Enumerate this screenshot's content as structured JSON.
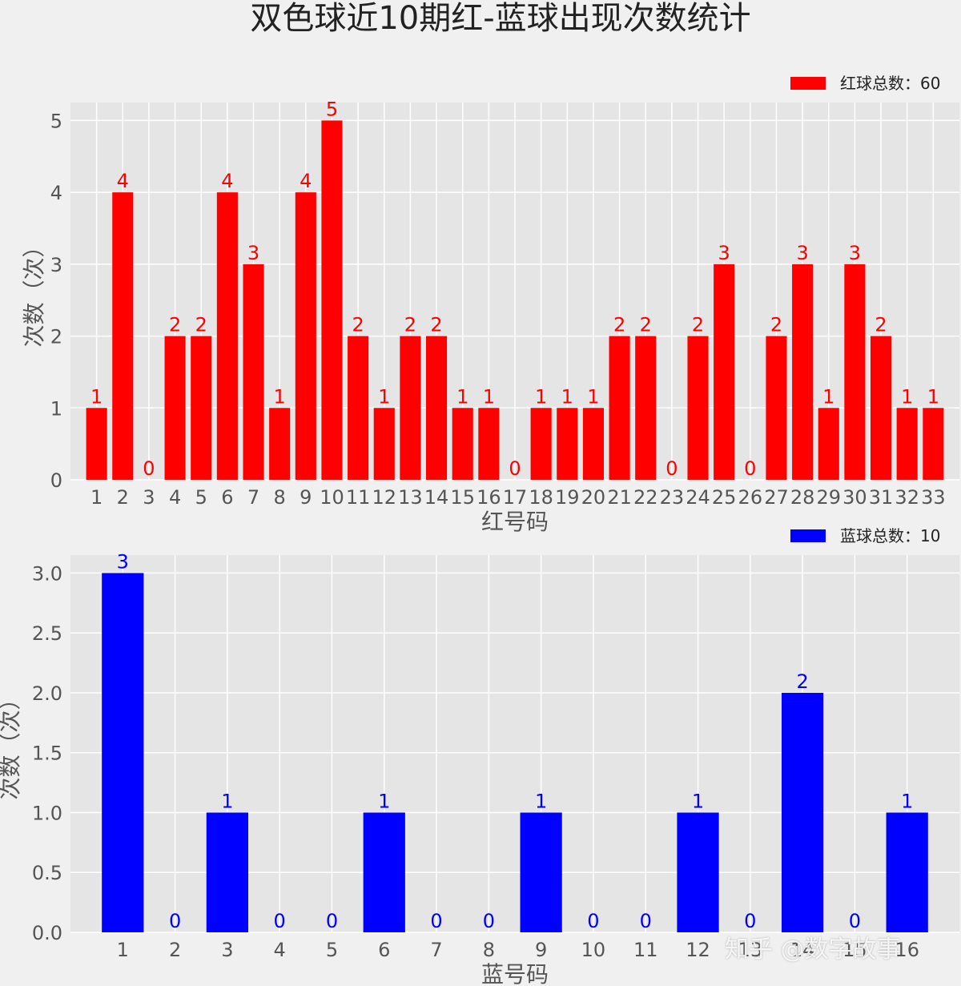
{
  "chart_data": [
    {
      "type": "bar",
      "title": "双色球近10期红-蓝球出现次数统计",
      "xlabel": "红号码",
      "ylabel": "次数（次）",
      "categories": [
        "1",
        "2",
        "3",
        "4",
        "5",
        "6",
        "7",
        "8",
        "9",
        "10",
        "11",
        "12",
        "13",
        "14",
        "15",
        "16",
        "17",
        "18",
        "19",
        "20",
        "21",
        "22",
        "23",
        "24",
        "25",
        "26",
        "27",
        "28",
        "29",
        "30",
        "31",
        "32",
        "33"
      ],
      "series": [
        {
          "name": "红球总数：60",
          "color": "#ff0000",
          "values": [
            1,
            4,
            0,
            2,
            2,
            4,
            3,
            1,
            4,
            5,
            2,
            1,
            2,
            2,
            1,
            1,
            0,
            1,
            1,
            1,
            2,
            2,
            0,
            2,
            3,
            0,
            2,
            3,
            1,
            3,
            2,
            1,
            1
          ]
        }
      ],
      "yticks": [
        "0",
        "1",
        "2",
        "3",
        "4",
        "5"
      ],
      "ylim": [
        0,
        5.25
      ],
      "grid": true,
      "legend": "top-right"
    },
    {
      "type": "bar",
      "xlabel": "蓝号码",
      "ylabel": "次数（次）",
      "categories": [
        "1",
        "2",
        "3",
        "4",
        "5",
        "6",
        "7",
        "8",
        "9",
        "10",
        "11",
        "12",
        "13",
        "14",
        "15",
        "16"
      ],
      "series": [
        {
          "name": "蓝球总数：10",
          "color": "#0000ff",
          "values": [
            3,
            0,
            1,
            0,
            0,
            1,
            0,
            0,
            1,
            0,
            0,
            1,
            0,
            2,
            0,
            1
          ]
        }
      ],
      "yticks": [
        "0.0",
        "0.5",
        "1.0",
        "1.5",
        "2.0",
        "2.5",
        "3.0"
      ],
      "ylim": [
        0,
        3.15
      ],
      "grid": true,
      "legend": "top-right"
    }
  ],
  "watermark": "知乎 @数字故事"
}
